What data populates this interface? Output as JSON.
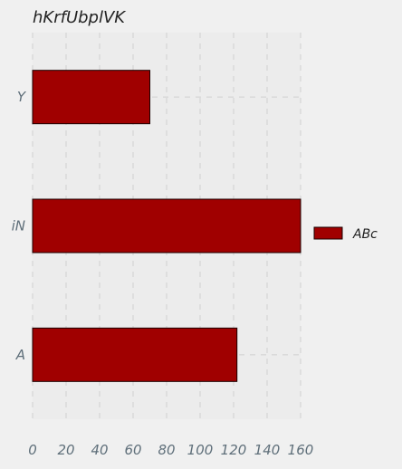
{
  "chart_data": {
    "type": "bar",
    "orientation": "horizontal",
    "title": "hKrfUbplVK",
    "categories": [
      "Y",
      "iN",
      "A"
    ],
    "series": [
      {
        "name": "ABc",
        "values": [
          70,
          160,
          122
        ]
      }
    ],
    "xlim": [
      0,
      160
    ],
    "xticks": [
      "0",
      "20",
      "40",
      "60",
      "80",
      "100",
      "120",
      "140",
      "160"
    ],
    "grid": true,
    "legend_position": "right",
    "colors": {
      "bar": "#a00000",
      "bar_edge": "#1a0000",
      "background": "#f0f0f0",
      "plot_background": "#ececec",
      "grid": "#cfcfcf",
      "tick_label": "#5f6f7a",
      "title": "#222222"
    }
  }
}
